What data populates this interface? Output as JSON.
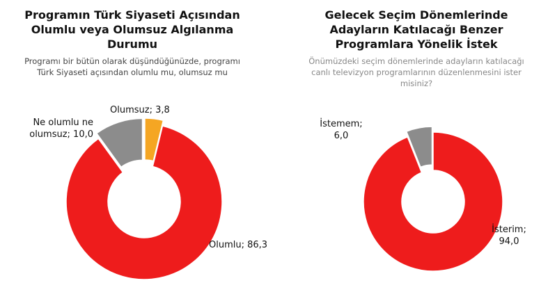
{
  "chart_data": [
    {
      "type": "donut",
      "title": "Programın Türk Siyaseti Açısından\nOlumlu veya Olumsuz Algılanma\nDurumu",
      "subtitle": "Programı bir bütün olarak düşündüğünüzde, programı\nTürk Siyaseti açısından olumlu mu, olumsuz mu",
      "categories": [
        "Olumsuz",
        "Olumlu",
        "Ne olumlu ne olumsuz"
      ],
      "values": [
        3.8,
        86.3,
        10.0
      ],
      "value_labels": [
        "Olumsuz; 3,8",
        "Olumlu; 86,3",
        "Ne olumlu ne\nolumsuz; 10,0"
      ],
      "colors": [
        "#f5a623",
        "#ee1c1c",
        "#8c8c8c"
      ]
    },
    {
      "type": "donut",
      "title": "Gelecek Seçim Dönemlerinde\nAdayların Katılacağı Benzer\nProgramlara Yönelik İstek",
      "subtitle": "Önümüzdeki seçim dönemlerinde adayların katılacağı\ncanlı televizyon programlarının düzenlenmesini ister\nmisiniz?",
      "categories": [
        "İsterim",
        "İstemem"
      ],
      "values": [
        94.0,
        6.0
      ],
      "value_labels": [
        "İsterim;\n94,0",
        "İstemem;\n6,0"
      ],
      "colors": [
        "#ee1c1c",
        "#8c8c8c"
      ]
    }
  ]
}
